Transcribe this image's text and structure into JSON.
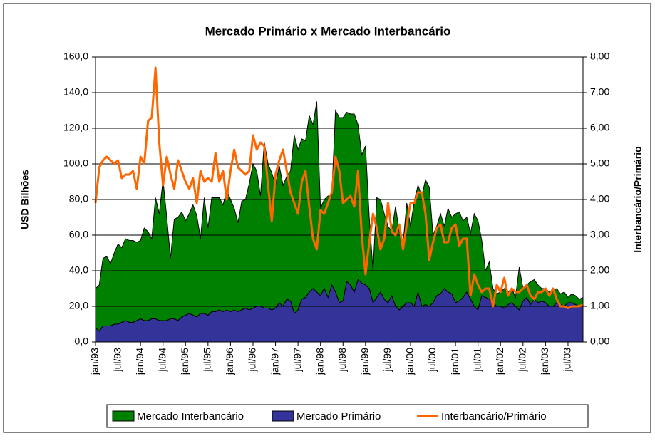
{
  "chart_data": {
    "type": "stacked-area-line",
    "title": "Mercado Primário x Mercado Interbancário",
    "y_label": "USD Bilhões",
    "y2_label": "Interbancário/Primário",
    "categories": [
      "jan/93",
      null,
      null,
      null,
      null,
      null,
      "jul/93",
      null,
      null,
      null,
      null,
      null,
      "jan/94",
      null,
      null,
      null,
      null,
      null,
      "jul/94",
      null,
      null,
      null,
      null,
      null,
      "jan/95",
      null,
      null,
      null,
      null,
      null,
      "jul/95",
      null,
      null,
      null,
      null,
      null,
      "jan/96",
      null,
      null,
      null,
      null,
      null,
      "jul/96",
      null,
      null,
      null,
      null,
      null,
      "jan/97",
      null,
      null,
      null,
      null,
      null,
      "jul/97",
      null,
      null,
      null,
      null,
      null,
      "jan/98",
      null,
      null,
      null,
      null,
      null,
      "jul/98",
      null,
      null,
      null,
      null,
      null,
      "jan/99",
      null,
      null,
      null,
      null,
      null,
      "jul/99",
      null,
      null,
      null,
      null,
      null,
      "jan/00",
      null,
      null,
      null,
      null,
      null,
      "jul/00",
      null,
      null,
      null,
      null,
      null,
      "jan/01",
      null,
      null,
      null,
      null,
      null,
      "jul/01",
      null,
      null,
      null,
      null,
      null,
      "jan/02",
      null,
      null,
      null,
      null,
      null,
      "jul/02",
      null,
      null,
      null,
      null,
      null,
      "jan/03",
      null,
      null,
      null,
      null,
      null,
      "jul/03",
      null,
      null,
      null,
      null
    ],
    "series": [
      {
        "name": "Mercado Interbancário",
        "color": "#008000",
        "stack": "top",
        "values": [
          22,
          26,
          38,
          39,
          35,
          40,
          45,
          42,
          46,
          46,
          46,
          44,
          44,
          52,
          50,
          45,
          68,
          60,
          79,
          58,
          34,
          56,
          58,
          59,
          53,
          56,
          62,
          57,
          42,
          65,
          49,
          64,
          64,
          63,
          60,
          67,
          63,
          57,
          50,
          61,
          61,
          71,
          81,
          76,
          62,
          93,
          81,
          77,
          69,
          77,
          68,
          69,
          73,
          100,
          90,
          90,
          88,
          99,
          92,
          107,
          49,
          50,
          57,
          50,
          102,
          104,
          103,
          95,
          96,
          100,
          87,
          72,
          78,
          40,
          18,
          56,
          52,
          48,
          43,
          36,
          56,
          44,
          35,
          56,
          43,
          59,
          60,
          62,
          70,
          67,
          38,
          39,
          45,
          35,
          47,
          43,
          50,
          50,
          43,
          42,
          37,
          52,
          50,
          31,
          15,
          21,
          8,
          7,
          8,
          11,
          7,
          8,
          5,
          24,
          7,
          7,
          13,
          11,
          10,
          7,
          8,
          8,
          9,
          8,
          6,
          8,
          3,
          5,
          5,
          4,
          5
        ]
      },
      {
        "name": "Mercado Primário",
        "color": "#333399",
        "stack": "base",
        "values": [
          8,
          6,
          9,
          9,
          9,
          10,
          10,
          11,
          12,
          11,
          11,
          12,
          13,
          12,
          12,
          13,
          13,
          12,
          12,
          12,
          13,
          13,
          12,
          14,
          15,
          16,
          15,
          14,
          16,
          16,
          15,
          17,
          17,
          18,
          17,
          18,
          17,
          18,
          17,
          18,
          19,
          18,
          19,
          20,
          20,
          19,
          19,
          18,
          19,
          22,
          20,
          24,
          23,
          16,
          18,
          24,
          25,
          28,
          30,
          28,
          26,
          30,
          25,
          32,
          28,
          22,
          23,
          34,
          32,
          28,
          35,
          33,
          32,
          30,
          22,
          25,
          28,
          24,
          22,
          26,
          20,
          18,
          20,
          22,
          22,
          20,
          28,
          20,
          21,
          20,
          22,
          26,
          27,
          30,
          28,
          27,
          22,
          23,
          25,
          28,
          24,
          20,
          18,
          26,
          25,
          24,
          22,
          20,
          20,
          19,
          21,
          22,
          20,
          18,
          23,
          25,
          21,
          24,
          22,
          23,
          22,
          20,
          20,
          22,
          21,
          20,
          22,
          22,
          21,
          20,
          20
        ]
      },
      {
        "name": "Interbancário/Primário",
        "color": "#ff6600",
        "axis": "y2",
        "values": [
          3.9,
          4.9,
          5.1,
          5.2,
          5.1,
          5.0,
          5.1,
          4.6,
          4.7,
          4.7,
          4.8,
          4.3,
          5.2,
          5.0,
          6.2,
          6.3,
          7.7,
          5.6,
          4.4,
          5.2,
          4.7,
          4.3,
          5.1,
          4.8,
          4.5,
          4.3,
          4.6,
          3.9,
          4.8,
          4.5,
          4.6,
          4.5,
          5.3,
          4.5,
          4.8,
          4.0,
          4.8,
          5.4,
          4.9,
          4.8,
          4.7,
          4.8,
          5.8,
          5.4,
          5.6,
          5.5,
          4.4,
          3.4,
          4.7,
          5.1,
          5.4,
          4.8,
          4.2,
          3.9,
          3.6,
          4.5,
          4.8,
          3.8,
          2.9,
          2.6,
          3.7,
          3.6,
          3.9,
          4.2,
          5.2,
          4.8,
          3.9,
          4.0,
          4.1,
          3.8,
          4.8,
          3.0,
          1.9,
          2.8,
          3.6,
          3.2,
          2.6,
          2.9,
          3.9,
          3.1,
          3.0,
          3.3,
          2.6,
          3.3,
          3.9,
          3.9,
          4.2,
          4.2,
          3.6,
          2.3,
          2.8,
          3.2,
          3.3,
          2.8,
          2.8,
          3.2,
          3.3,
          2.7,
          2.9,
          2.9,
          1.3,
          1.9,
          1.6,
          1.4,
          1.5,
          1.5,
          1.0,
          1.6,
          1.4,
          1.8,
          1.3,
          1.5,
          1.4,
          1.4,
          1.5,
          1.6,
          1.3,
          1.2,
          1.4,
          1.4,
          1.5,
          1.3,
          1.5,
          1.2,
          1.0,
          1.0,
          0.95,
          1.0,
          1.0,
          1.0,
          1.05
        ]
      }
    ],
    "ylim": [
      0,
      160
    ],
    "yticks": [
      {
        "value": 0,
        "label": "0,0"
      },
      {
        "value": 20,
        "label": "20,0"
      },
      {
        "value": 40,
        "label": "40,0"
      },
      {
        "value": 60,
        "label": "60,0"
      },
      {
        "value": 80,
        "label": "80,0"
      },
      {
        "value": 100,
        "label": "100,0"
      },
      {
        "value": 120,
        "label": "120,0"
      },
      {
        "value": 140,
        "label": "140,0"
      },
      {
        "value": 160,
        "label": "160,0"
      }
    ],
    "y2lim": [
      0,
      8
    ],
    "y2ticks": [
      {
        "value": 0,
        "label": "0,00"
      },
      {
        "value": 1,
        "label": "1,00"
      },
      {
        "value": 2,
        "label": "2,00"
      },
      {
        "value": 3,
        "label": "3,00"
      },
      {
        "value": 4,
        "label": "4,00"
      },
      {
        "value": 5,
        "label": "5,00"
      },
      {
        "value": 6,
        "label": "6,00"
      },
      {
        "value": 7,
        "label": "7,00"
      },
      {
        "value": 8,
        "label": "8,00"
      }
    ],
    "grid": true,
    "legend": "bottom"
  }
}
